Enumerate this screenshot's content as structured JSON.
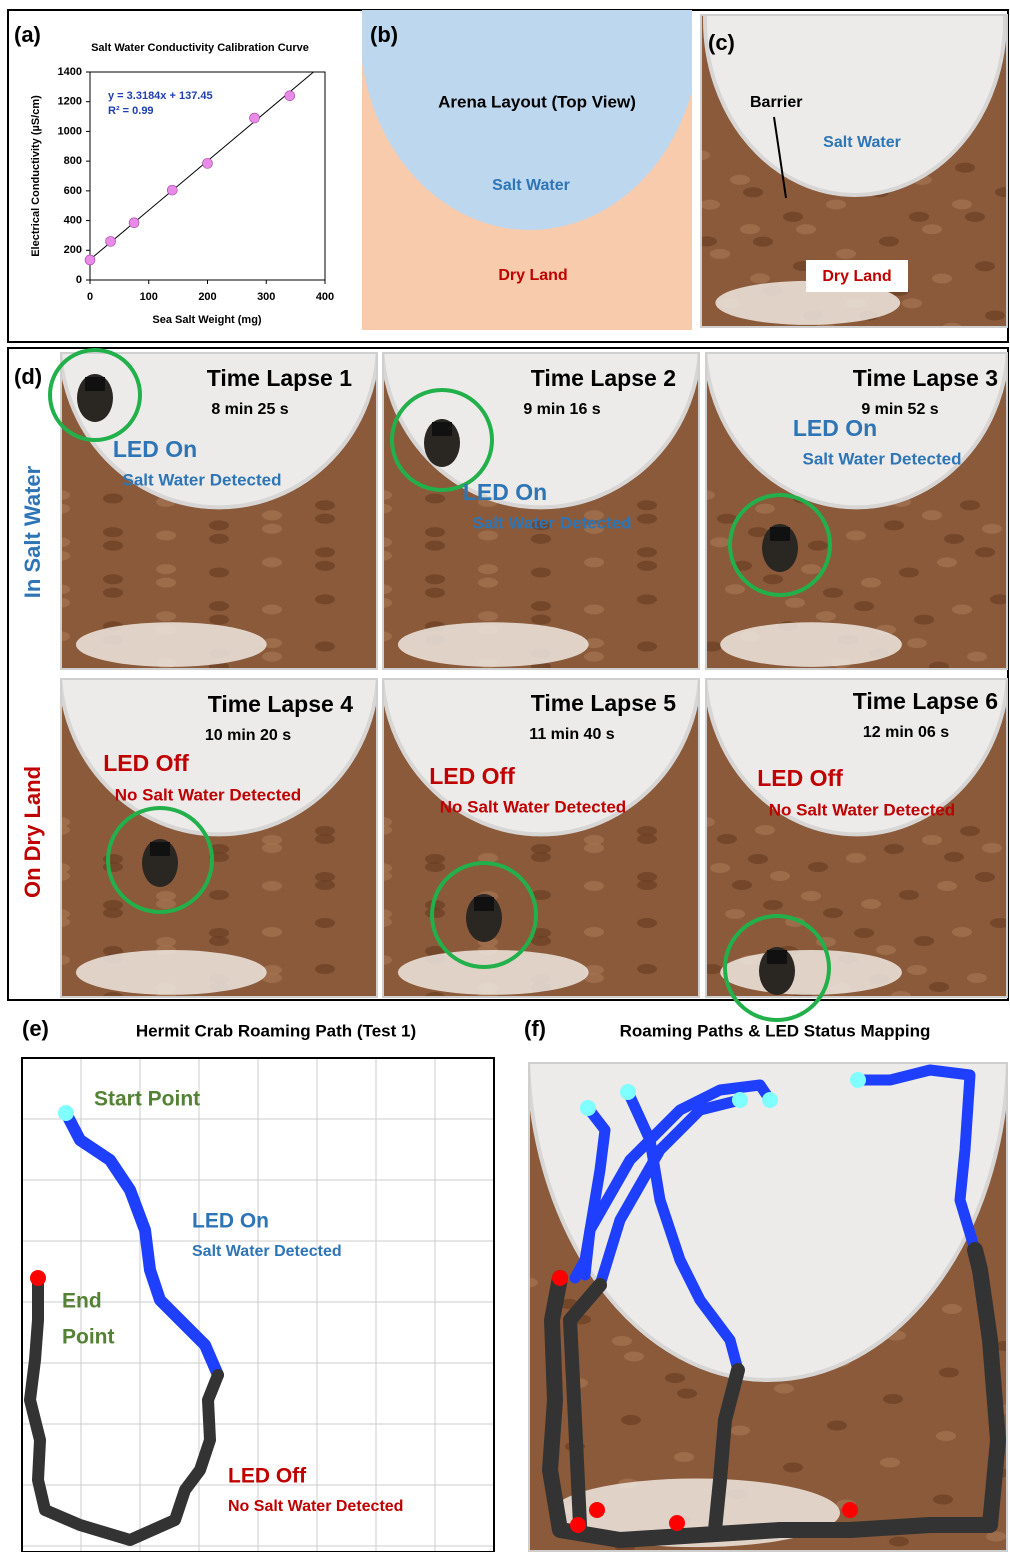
{
  "chart_data": {
    "type": "scatter",
    "panel_label": "(a)",
    "title": "Salt Water Conductivity Calibration Curve",
    "x_label": "Sea Salt Weight (mg)",
    "y_label": "Electrical Conductivity (µS/cm)",
    "x": [
      0,
      35,
      75,
      140,
      200,
      280,
      340
    ],
    "values": [
      135,
      260,
      385,
      605,
      785,
      1090,
      1240
    ],
    "color": "#e88ae8",
    "xlim": [
      0,
      400
    ],
    "xticks": [
      0,
      100,
      200,
      300,
      400
    ],
    "ylim": [
      0,
      1400
    ],
    "yticks": [
      0,
      200,
      400,
      600,
      800,
      1000,
      1200,
      1400
    ],
    "fit": {
      "slope": 3.3184,
      "intercept": 137.45,
      "label": "y = 3.3184x + 137.45"
    },
    "r2_label": "R² = 0.99"
  },
  "panel_b": {
    "label": "(b)",
    "title": "Arena Layout (Top View)",
    "water": "Salt Water",
    "land": "Dry Land"
  },
  "panel_c": {
    "label": "(c)",
    "barrier": "Barrier",
    "water": "Salt Water",
    "land": "Dry Land"
  },
  "panel_d": {
    "label": "(d)",
    "rows": [
      {
        "label": "In Salt Water",
        "led": "LED On",
        "status": "Salt Water Detected"
      },
      {
        "label": "On Dry Land",
        "led": "LED Off",
        "status": "No Salt Water Detected"
      }
    ],
    "frames": [
      {
        "title": "Time Lapse 1",
        "time": "8 min 25 s"
      },
      {
        "title": "Time Lapse 2",
        "time": "9 min 16 s"
      },
      {
        "title": "Time Lapse 3",
        "time": "9 min 52 s"
      },
      {
        "title": "Time Lapse 4",
        "time": "10 min 20 s"
      },
      {
        "title": "Time Lapse 5",
        "time": "11 min 40 s"
      },
      {
        "title": "Time Lapse 6",
        "time": "12 min 06 s"
      }
    ]
  },
  "panel_e": {
    "label": "(e)",
    "title": "Hermit Crab Roaming Path (Test 1)",
    "start": "Start Point",
    "end": [
      "End",
      "Point"
    ],
    "led_on": "LED On",
    "on_status": "Salt Water Detected",
    "led_off": "LED Off",
    "off_status": "No Salt Water Detected"
  },
  "panel_f": {
    "label": "(f)",
    "title": "Roaming Paths & LED Status Mapping"
  }
}
